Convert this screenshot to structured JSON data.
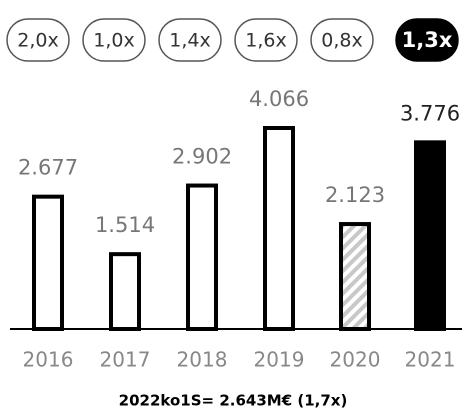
{
  "chart_data": {
    "type": "bar",
    "categories": [
      "2016",
      "2017",
      "2018",
      "2019",
      "2020",
      "2021"
    ],
    "values": [
      2677,
      1514,
      2902,
      4066,
      2123,
      3776
    ],
    "value_labels": [
      "2.677",
      "1.514",
      "2.902",
      "4.066",
      "2.123",
      "3.776"
    ],
    "multiples": [
      "2,0x",
      "1,0x",
      "1,4x",
      "1,6x",
      "0,8x",
      "1,3x"
    ],
    "styles": [
      "outline",
      "outline",
      "outline",
      "outline",
      "hatched",
      "solid"
    ],
    "color": "#000000",
    "annotation": "2022ko1S= 2.643M€ (1,7x)"
  }
}
